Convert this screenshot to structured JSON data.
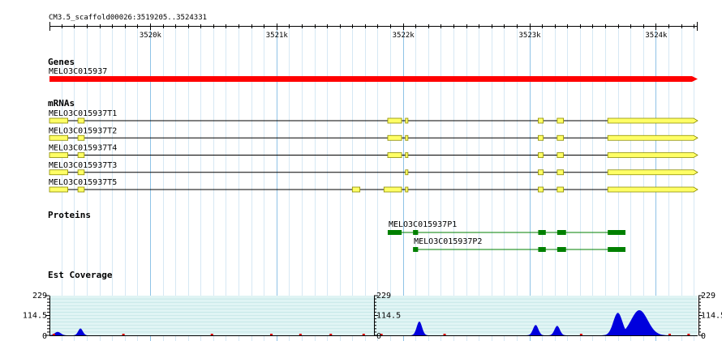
{
  "browser": {
    "location": "CM3.5_scaffold00026:3519205..3524331",
    "colors": {
      "grid_major": "#8fc3e6",
      "grid_minor": "#d6e8f4",
      "gene": "#ff0000",
      "exon_fill": "#ffff66",
      "exon_stroke": "#8a8a00",
      "protein": "#008000",
      "coverage": "#0000dd",
      "coverage_low": "#dd0000",
      "coverage_bg": "#e0f4f4"
    }
  },
  "ruler": {
    "ticks": [
      {
        "pos": 3520000,
        "label": "3520k"
      },
      {
        "pos": 3521000,
        "label": "3521k"
      },
      {
        "pos": 3522000,
        "label": "3522k"
      },
      {
        "pos": 3523000,
        "label": "3523k"
      },
      {
        "pos": 3524000,
        "label": "3524k"
      }
    ]
  },
  "tracks": {
    "genes": {
      "title": "Genes",
      "features": [
        {
          "name": "MELO3C015937",
          "start": 3519205,
          "end": 3524331
        }
      ]
    },
    "mrnas": {
      "title": "mRNAs",
      "features": [
        {
          "name": "MELO3C015937T1",
          "start": 3519205,
          "end": 3524331,
          "exons": [
            [
              3519205,
              3519350
            ],
            [
              3519430,
              3519480
            ],
            [
              3521880,
              3521990
            ],
            [
              3522020,
              3522040
            ],
            [
              3523070,
              3523110
            ],
            [
              3523220,
              3523270
            ],
            [
              3523620,
              3524331
            ]
          ]
        },
        {
          "name": "MELO3C015937T2",
          "start": 3519205,
          "end": 3524331,
          "exons": [
            [
              3519205,
              3519350
            ],
            [
              3519430,
              3519480
            ],
            [
              3521880,
              3521990
            ],
            [
              3522020,
              3522040
            ],
            [
              3523070,
              3523110
            ],
            [
              3523220,
              3523270
            ],
            [
              3523620,
              3524331
            ]
          ]
        },
        {
          "name": "MELO3C015937T4",
          "start": 3519205,
          "end": 3524331,
          "exons": [
            [
              3519205,
              3519350
            ],
            [
              3519430,
              3519480
            ],
            [
              3521880,
              3521990
            ],
            [
              3522020,
              3522040
            ],
            [
              3523070,
              3523110
            ],
            [
              3523220,
              3523270
            ],
            [
              3523620,
              3524331
            ]
          ]
        },
        {
          "name": "MELO3C015937T3",
          "start": 3519205,
          "end": 3524331,
          "exons": [
            [
              3519205,
              3519350
            ],
            [
              3519430,
              3519480
            ],
            [
              3522020,
              3522040
            ],
            [
              3523070,
              3523110
            ],
            [
              3523220,
              3523270
            ],
            [
              3523620,
              3524331
            ]
          ]
        },
        {
          "name": "MELO3C015937T5",
          "start": 3519205,
          "end": 3524331,
          "exons": [
            [
              3519205,
              3519350
            ],
            [
              3519430,
              3519480
            ],
            [
              3521600,
              3521660
            ],
            [
              3521850,
              3521990
            ],
            [
              3522020,
              3522040
            ],
            [
              3523070,
              3523110
            ],
            [
              3523220,
              3523270
            ],
            [
              3523620,
              3524331
            ]
          ]
        }
      ]
    },
    "proteins": {
      "title": "Proteins",
      "features": [
        {
          "name": "MELO3C015937P1",
          "start": 3521880,
          "end": 3523760,
          "blocks": [
            [
              3521880,
              3521990
            ],
            [
              3522080,
              3522120
            ],
            [
              3523070,
              3523130
            ],
            [
              3523220,
              3523290
            ],
            [
              3523620,
              3523760
            ]
          ]
        },
        {
          "name": "MELO3C015937P2",
          "start": 3522080,
          "end": 3523760,
          "blocks": [
            [
              3522080,
              3522120
            ],
            [
              3523070,
              3523130
            ],
            [
              3523220,
              3523290
            ],
            [
              3523620,
              3523760
            ]
          ]
        }
      ]
    },
    "est_coverage": {
      "title": "Est Coverage",
      "scale_labels": {
        "max": "229",
        "mid": "114.5",
        "min": "0"
      },
      "y_max": 229,
      "peaks": [
        {
          "center": 3519270,
          "half_width": 40,
          "height": 20
        },
        {
          "center": 3519450,
          "half_width": 30,
          "height": 40
        },
        {
          "center": 3522130,
          "half_width": 35,
          "height": 80
        },
        {
          "center": 3523050,
          "half_width": 35,
          "height": 60
        },
        {
          "center": 3523220,
          "half_width": 35,
          "height": 55
        },
        {
          "center": 3523700,
          "half_width": 60,
          "height": 130
        },
        {
          "center": 3523870,
          "half_width": 110,
          "height": 145
        }
      ],
      "low_marks": [
        3519230,
        3519780,
        3520480,
        3520950,
        3521180,
        3521420,
        3521680,
        3521820,
        3522320,
        3523400,
        3524100,
        3524250
      ]
    }
  }
}
